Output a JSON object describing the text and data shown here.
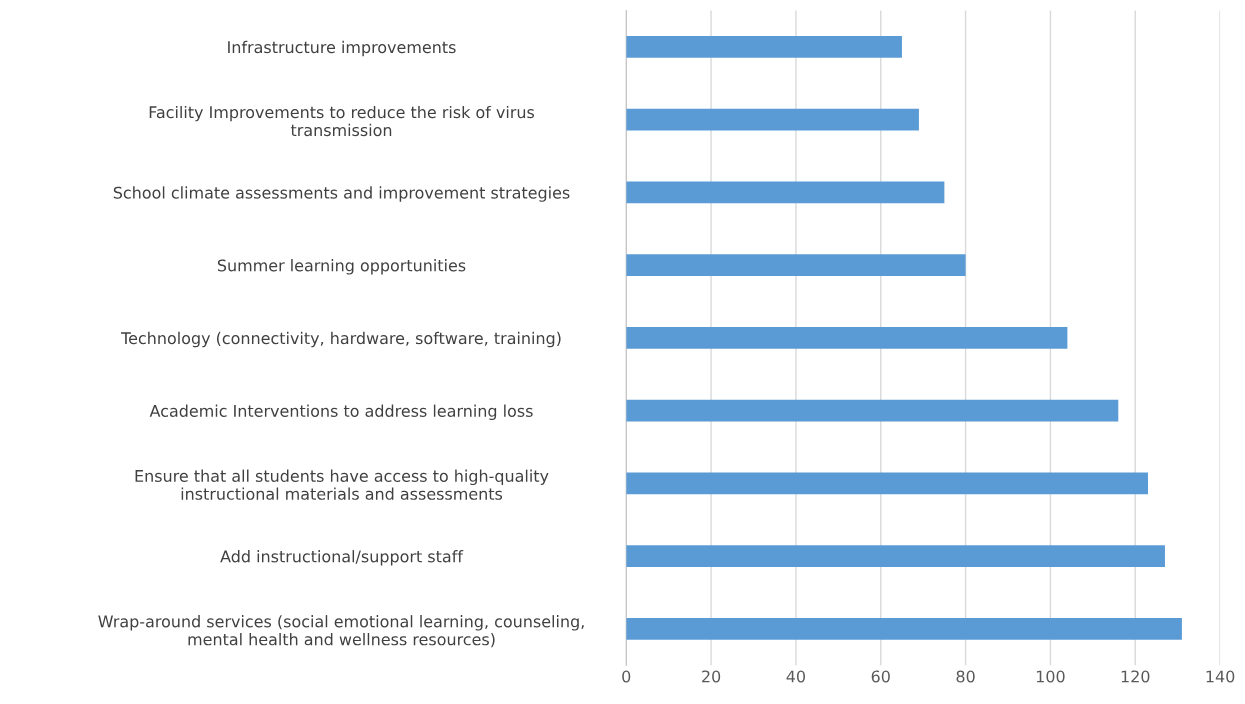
{
  "chart_data": {
    "type": "bar",
    "orientation": "horizontal",
    "categories": [
      "Infrastructure improvements",
      "Facility Improvements to reduce the risk of virus\ntransmission",
      "School climate assessments and improvement strategies",
      "Summer learning opportunities",
      "Technology (connectivity, hardware, software, training)",
      "Academic Interventions to address learning loss",
      "Ensure that all students have access to high-quality\ninstructional materials and assessments",
      "Add instructional/support staff",
      "Wrap-around services (social emotional learning, counseling,\nmental health and wellness resources)"
    ],
    "values": [
      65,
      69,
      75,
      80,
      104,
      116,
      123,
      127,
      131
    ],
    "color": "#5b9bd5",
    "xlim": [
      0,
      140
    ],
    "xticks": [
      0,
      20,
      40,
      60,
      80,
      100,
      120,
      140
    ],
    "grid": "x",
    "legend": false
  }
}
